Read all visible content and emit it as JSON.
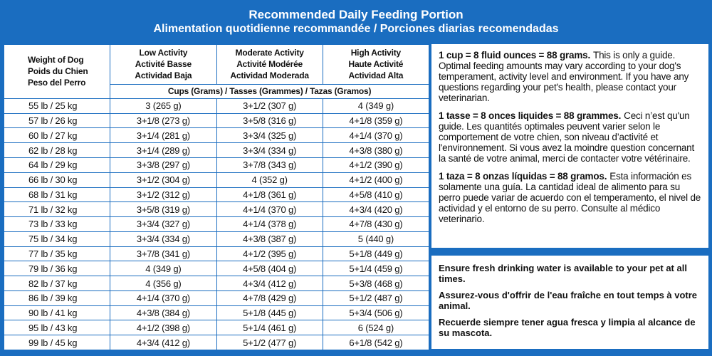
{
  "header": {
    "title": "Recommended Daily Feeding Portion",
    "subtitle": "Alimentation quotidienne recommandée / Porciones diarias recomendadas"
  },
  "table": {
    "columns": [
      [
        "Weight of Dog",
        "Poids du Chien",
        "Peso del Perro"
      ],
      [
        "Low Activity",
        "Activité Basse",
        "Actividad Baja"
      ],
      [
        "Moderate Activity",
        "Activité Modérée",
        "Actividad Moderada"
      ],
      [
        "High Activity",
        "Haute Activité",
        "Actividad Alta"
      ]
    ],
    "unit_row": "Cups (Grams) / Tasses (Grammes) / Tazas (Gramos)",
    "rows": [
      [
        "55 lb / 25 kg",
        "3 (265 g)",
        "3+1/2 (307 g)",
        "4 (349 g)"
      ],
      [
        "57 lb / 26 kg",
        "3+1/8 (273 g)",
        "3+5/8 (316 g)",
        "4+1/8 (359 g)"
      ],
      [
        "60 lb / 27 kg",
        "3+1/4 (281 g)",
        "3+3/4 (325 g)",
        "4+1/4 (370 g)"
      ],
      [
        "62 lb / 28 kg",
        "3+1/4 (289 g)",
        "3+3/4 (334 g)",
        "4+3/8 (380 g)"
      ],
      [
        "64 lb / 29 kg",
        "3+3/8 (297 g)",
        "3+7/8 (343 g)",
        "4+1/2 (390 g)"
      ],
      [
        "66 lb / 30 kg",
        "3+1/2 (304 g)",
        "4 (352 g)",
        "4+1/2 (400 g)"
      ],
      [
        "68 lb / 31 kg",
        "3+1/2 (312 g)",
        "4+1/8 (361 g)",
        "4+5/8 (410 g)"
      ],
      [
        "71 lb / 32 kg",
        "3+5/8 (319 g)",
        "4+1/4 (370 g)",
        "4+3/4 (420 g)"
      ],
      [
        "73 lb / 33 kg",
        "3+3/4 (327 g)",
        "4+1/4 (378 g)",
        "4+7/8 (430 g)"
      ],
      [
        "75 lb / 34 kg",
        "3+3/4 (334 g)",
        "4+3/8 (387 g)",
        "5 (440 g)"
      ],
      [
        "77 lb / 35 kg",
        "3+7/8 (341 g)",
        "4+1/2 (395 g)",
        "5+1/8 (449 g)"
      ],
      [
        "79 lb / 36 kg",
        "4 (349 g)",
        "4+5/8 (404 g)",
        "5+1/4 (459 g)"
      ],
      [
        "82 lb / 37 kg",
        "4 (356 g)",
        "4+3/4 (412 g)",
        "5+3/8 (468 g)"
      ],
      [
        "86 lb / 39 kg",
        "4+1/4 (370 g)",
        "4+7/8 (429 g)",
        "5+1/2 (487 g)"
      ],
      [
        "90 lb / 41 kg",
        "4+3/8 (384 g)",
        "5+1/8 (445 g)",
        "5+3/4 (506 g)"
      ],
      [
        "95 lb / 43 kg",
        "4+1/2 (398 g)",
        "5+1/4 (461 g)",
        "6 (524 g)"
      ],
      [
        "99 lb / 45 kg",
        "4+3/4 (412 g)",
        "5+1/2 (477 g)",
        "6+1/8 (542 g)"
      ]
    ]
  },
  "notes": [
    {
      "bold": "1 cup = 8 fluid ounces = 88 grams.",
      "text": "This is only a guide. Optimal feeding amounts may vary according to your dog's temperament, activity level and environment. If you have any questions regarding your pet's health, please contact your veterinarian."
    },
    {
      "bold": "1 tasse = 8 onces liquides = 88 grammes.",
      "text": "Ceci n’est qu'un guide. Les quantités optimales peuvent varier selon le comportement de votre chien, son niveau d’activité et l'environnement. Si vous avez la moindre question concernant la santé de votre animal, merci de contacter votre vétérinaire."
    },
    {
      "bold": "1 taza = 8 onzas líquidas = 88 gramos.",
      "text": "Esta información es solamente una guía. La cantidad ideal de alimento para su perro puede variar de acuerdo con el temperamento, el nivel de actividad y el entorno de su perro. Consulte al médico veterinario."
    }
  ],
  "reminders": [
    "Ensure fresh drinking water is available to your pet at all times.",
    "Assurez-vous d'offrir de l'eau fraîche en tout temps à votre animal.",
    "Recuerde siempre tener agua fresca y limpia al alcance de su mascota."
  ]
}
